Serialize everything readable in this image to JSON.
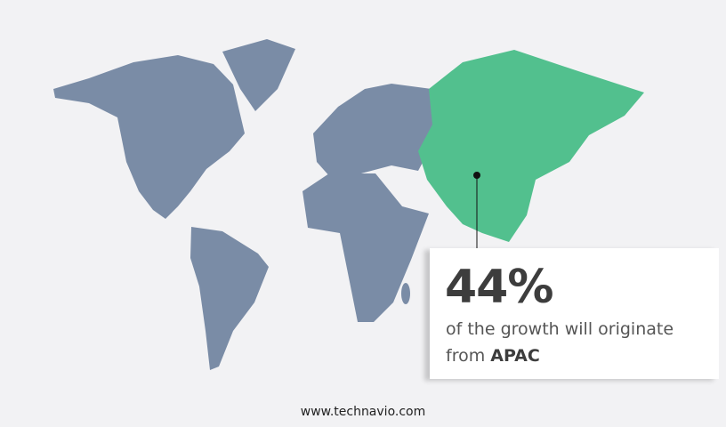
{
  "colors": {
    "background": "#f2f2f4",
    "map_land": "#7a8ca6",
    "highlight_region": "#52c08e",
    "text": "#3d3d3d"
  },
  "highlight": {
    "region": "APAC"
  },
  "callout": {
    "value": "44%",
    "text": "of the growth will originate",
    "text_from": "from",
    "region": "APAC"
  },
  "footer": {
    "url": "www.technavio.com"
  }
}
